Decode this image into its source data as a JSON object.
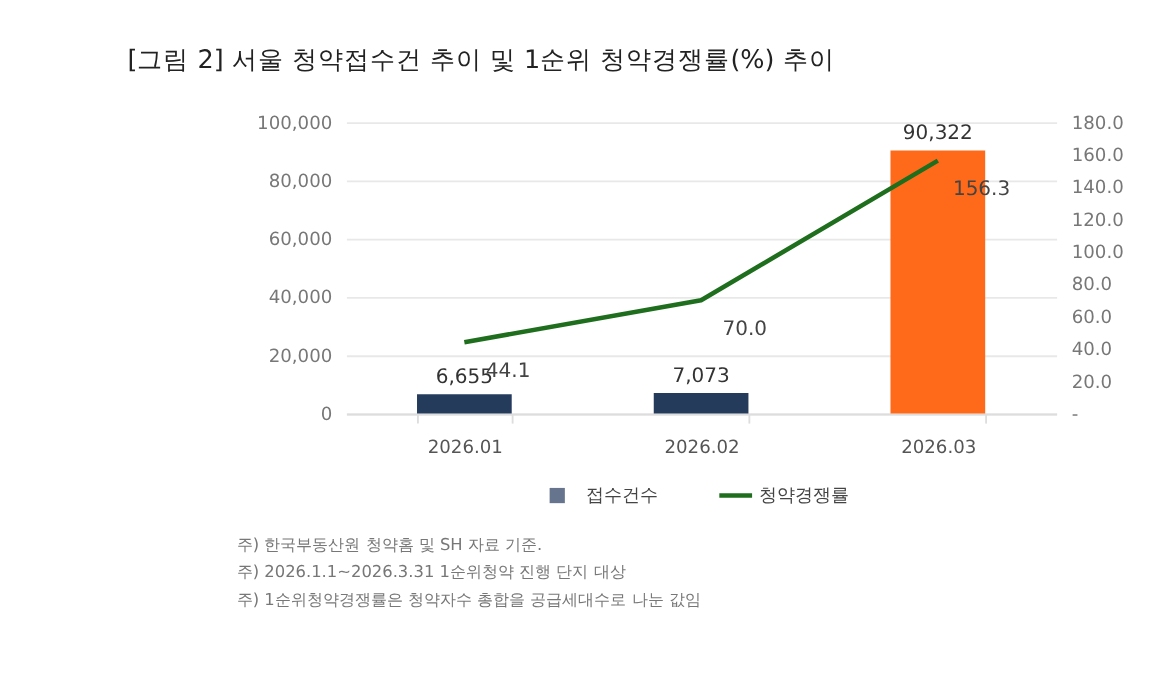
{
  "chart_data": {
    "type": "bar",
    "title": "[그림 2] 서울 청약접수건 추이 및 1순위 청약경쟁률(%) 추이",
    "categories": [
      "2026.01",
      "2026.02",
      "2026.03"
    ],
    "series": [
      {
        "name": "접수건수",
        "color": "#253b5c",
        "colors": [
          "#253b5c",
          "#253b5c",
          "#ff6a1a"
        ],
        "values": [
          6655,
          7073,
          90322
        ],
        "value_labels": [
          "6,655",
          "7,073",
          "90,322"
        ]
      },
      {
        "name": "청약경쟁률",
        "type": "line",
        "axis": "y2",
        "color": "#1e6e1e",
        "values": [
          44.1,
          70.0,
          156.3
        ],
        "value_labels": [
          "44.1",
          "70.0",
          "156.3"
        ]
      }
    ],
    "ylim": [
      0,
      100000
    ],
    "yticks": [
      0,
      {
        "value": 20000,
        "label": "20,000"
      },
      {
        "value": 40000,
        "label": "40,000"
      },
      {
        "value": 60000,
        "label": "60,000"
      },
      {
        "value": 80000,
        "label": "80,000"
      },
      {
        "value": 100000,
        "label": "100,000"
      }
    ],
    "y2lim": [
      0,
      180
    ],
    "y2ticks": [
      {
        "value": 0,
        "label": "-"
      },
      {
        "value": 20,
        "label": "20.0"
      },
      {
        "value": 40,
        "label": "40.0"
      },
      {
        "value": 60,
        "label": "60.0"
      },
      {
        "value": 80,
        "label": "80.0"
      },
      {
        "value": 100,
        "label": "100.0"
      },
      {
        "value": 120,
        "label": "120.0"
      },
      {
        "value": 140,
        "label": "140.0"
      },
      {
        "value": 160,
        "label": "160.0"
      },
      {
        "value": 180,
        "label": "180.0"
      }
    ],
    "grid": "y",
    "legend": "bottom",
    "annotations": [
      "주) 한국부동산원 청약홈 및 SH 자료 기준.",
      "주) 2026.1.1~2026.3.31 1순위청약 진행 단지 대상",
      "주) 1순위청약경쟁률은 청약자수 총합을 공급세대수로 나눈 값임"
    ]
  }
}
